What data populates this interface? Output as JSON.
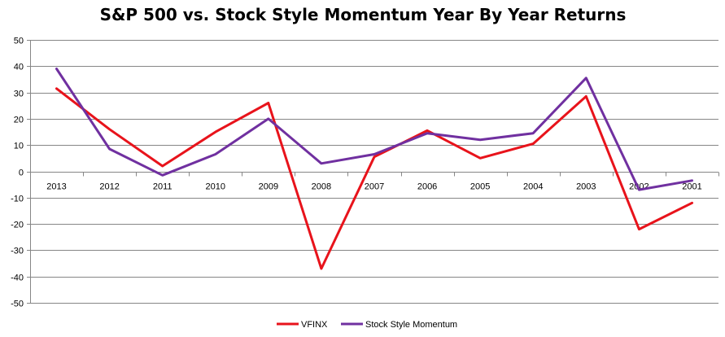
{
  "chart_data": {
    "type": "line",
    "title": "S&P 500 vs. Stock Style Momentum Year By Year Returns",
    "categories": [
      "2013",
      "2012",
      "2011",
      "2010",
      "2009",
      "2008",
      "2007",
      "2006",
      "2005",
      "2004",
      "2003",
      "2002",
      "2001"
    ],
    "series": [
      {
        "name": "VFINX",
        "color": "#e8131b",
        "values": [
          31.5,
          16,
          2,
          15,
          26,
          -37,
          5.5,
          15.5,
          5,
          10.5,
          28.5,
          -22,
          -12
        ]
      },
      {
        "name": "Stock Style Momentum",
        "color": "#7030a0",
        "values": [
          39,
          8.5,
          -1.5,
          6.5,
          20,
          3,
          6.5,
          14.5,
          12,
          14.5,
          35.5,
          -7,
          -3.5
        ]
      }
    ],
    "ylim": [
      -50,
      50
    ],
    "yticks": [
      "50",
      "40",
      "30",
      "20",
      "10",
      "0",
      "-10",
      "-20",
      "-30",
      "-40",
      "-50"
    ],
    "xlabel": "",
    "ylabel": "",
    "grid": true,
    "legend": "bottom"
  }
}
